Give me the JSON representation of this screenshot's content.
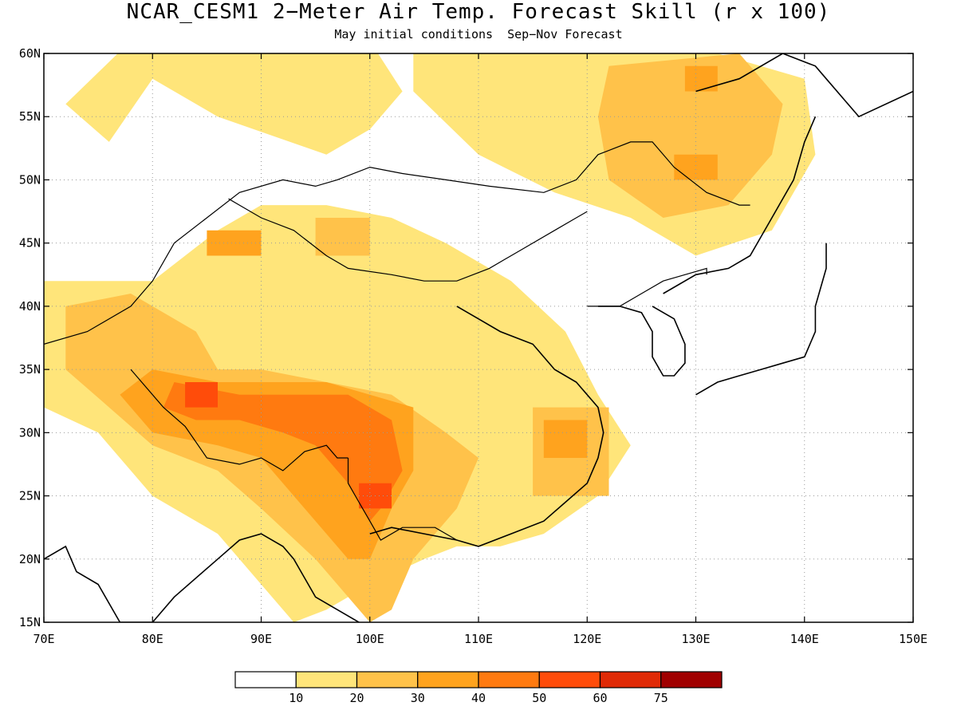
{
  "title": "NCAR_CESM1 2−Meter Air Temp. Forecast Skill (r x 100)",
  "subtitle": "May initial conditions  Sep−Nov Forecast",
  "map": {
    "lon_range": [
      70,
      150
    ],
    "lat_range": [
      15,
      60
    ],
    "x_ticks": [
      {
        "lon": 70,
        "label": "70E"
      },
      {
        "lon": 80,
        "label": "80E"
      },
      {
        "lon": 90,
        "label": "90E"
      },
      {
        "lon": 100,
        "label": "100E"
      },
      {
        "lon": 110,
        "label": "110E"
      },
      {
        "lon": 120,
        "label": "120E"
      },
      {
        "lon": 130,
        "label": "130E"
      },
      {
        "lon": 140,
        "label": "140E"
      },
      {
        "lon": 150,
        "label": "150E"
      }
    ],
    "y_ticks": [
      {
        "lat": 15,
        "label": "15N"
      },
      {
        "lat": 20,
        "label": "20N"
      },
      {
        "lat": 25,
        "label": "25N"
      },
      {
        "lat": 30,
        "label": "30N"
      },
      {
        "lat": 35,
        "label": "35N"
      },
      {
        "lat": 40,
        "label": "40N"
      },
      {
        "lat": 45,
        "label": "45N"
      },
      {
        "lat": 50,
        "label": "50N"
      },
      {
        "lat": 55,
        "label": "55N"
      },
      {
        "lat": 60,
        "label": "60N"
      }
    ],
    "grid": "dotted"
  },
  "colorbar": {
    "colors": [
      "#ffffff",
      "#ffe57a",
      "#ffc24a",
      "#ffa31e",
      "#ff7a10",
      "#ff4c0a",
      "#e02a06",
      "#a00000"
    ],
    "tick_labels": [
      "10",
      "20",
      "30",
      "40",
      "50",
      "60",
      "75"
    ]
  },
  "skill_regions": [
    {
      "level": 1,
      "lon": [
        76,
        100,
        103,
        100,
        96,
        86,
        80,
        76,
        72,
        78
      ],
      "lat": [
        61,
        61,
        57,
        54,
        52,
        55,
        58,
        53,
        56,
        61
      ]
    },
    {
      "level": 1,
      "lon": [
        104,
        128,
        140,
        141,
        137,
        130,
        124,
        117,
        110,
        104
      ],
      "lat": [
        61,
        61,
        58,
        52,
        46,
        44,
        47,
        49,
        52,
        57
      ]
    },
    {
      "level": 2,
      "lon": [
        122,
        134,
        138,
        137,
        133,
        127,
        122,
        121
      ],
      "lat": [
        59,
        60,
        56,
        52,
        48,
        47,
        50,
        55
      ]
    },
    {
      "level": 3,
      "lon": [
        129,
        132,
        132,
        129
      ],
      "lat": [
        57,
        57,
        59,
        59
      ]
    },
    {
      "level": 3,
      "lon": [
        128,
        132,
        132,
        128
      ],
      "lat": [
        50,
        50,
        52,
        52
      ]
    },
    {
      "level": 1,
      "lon": [
        70,
        80,
        86,
        90,
        96,
        102,
        107,
        113,
        118,
        121,
        124,
        121,
        116,
        112,
        108,
        105,
        100,
        96,
        93,
        90,
        86,
        80,
        75,
        70
      ],
      "lat": [
        42,
        42,
        46,
        48,
        48,
        47,
        45,
        42,
        38,
        33,
        29,
        25,
        22,
        21,
        21,
        20,
        18,
        16,
        15,
        18,
        22,
        25,
        30,
        32
      ]
    },
    {
      "level": 2,
      "lon": [
        72,
        78,
        84,
        86,
        90,
        96,
        102,
        107,
        110,
        108,
        104,
        102,
        100,
        98,
        95,
        90,
        86,
        80,
        76,
        72
      ],
      "lat": [
        40,
        41,
        38,
        35,
        35,
        34,
        33,
        30,
        28,
        24,
        20,
        16,
        15,
        17,
        20,
        24,
        27,
        29,
        32,
        35
      ]
    },
    {
      "level": 3,
      "lon": [
        80,
        86,
        92,
        96,
        100,
        104,
        104,
        102,
        100,
        98,
        94,
        90,
        86,
        80,
        77
      ],
      "lat": [
        35,
        34,
        34,
        34,
        33,
        32,
        27,
        24,
        20,
        20,
        24,
        28,
        29,
        30,
        33
      ]
    },
    {
      "level": 4,
      "lon": [
        82,
        88,
        94,
        98,
        102,
        103,
        101,
        100,
        98,
        95,
        92,
        88,
        84,
        81
      ],
      "lat": [
        34,
        33,
        33,
        33,
        31,
        27,
        24,
        23,
        26,
        29,
        30,
        31,
        31,
        32
      ]
    },
    {
      "level": 5,
      "lon": [
        83,
        86,
        86,
        83
      ],
      "lat": [
        32,
        32,
        34,
        34
      ]
    },
    {
      "level": 5,
      "lon": [
        99,
        102,
        102,
        99
      ],
      "lat": [
        24,
        24,
        26,
        26
      ]
    },
    {
      "level": 3,
      "lon": [
        85,
        90,
        90,
        85
      ],
      "lat": [
        44,
        44,
        46,
        46
      ]
    },
    {
      "level": 2,
      "lon": [
        95,
        100,
        100,
        95
      ],
      "lat": [
        44,
        44,
        47,
        47
      ]
    },
    {
      "level": 2,
      "lon": [
        115,
        122,
        122,
        115
      ],
      "lat": [
        25,
        25,
        32,
        32
      ]
    },
    {
      "level": 3,
      "lon": [
        116,
        120,
        120,
        116
      ],
      "lat": [
        28,
        28,
        31,
        31
      ]
    }
  ],
  "coastlines": [
    {
      "lon": [
        100,
        102,
        105,
        108,
        110,
        113,
        116,
        118,
        120,
        121,
        121.5,
        121,
        119,
        117,
        115,
        112,
        110,
        108
      ],
      "lat": [
        22,
        22.5,
        22,
        21.5,
        21,
        22,
        23,
        24.5,
        26,
        28,
        30,
        32,
        34,
        35,
        37,
        38,
        39,
        40
      ]
    },
    {
      "lon": [
        121,
        123,
        125,
        126,
        126,
        127,
        128,
        129,
        129,
        128,
        126
      ],
      "lat": [
        40,
        40,
        39.5,
        38,
        36,
        34.5,
        34.5,
        35.5,
        37,
        39,
        40
      ]
    },
    {
      "lon": [
        130,
        132,
        134,
        136,
        138,
        140,
        141,
        141,
        142,
        142
      ],
      "lat": [
        33,
        34,
        34.5,
        35,
        35.5,
        36,
        38,
        40,
        43,
        45
      ]
    },
    {
      "lon": [
        127,
        130,
        133,
        135,
        137,
        139,
        140,
        141
      ],
      "lat": [
        41,
        42.5,
        43,
        44,
        47,
        50,
        53,
        55
      ]
    },
    {
      "lon": [
        130,
        134,
        138,
        141,
        142,
        145,
        150
      ],
      "lat": [
        57,
        58,
        60,
        59,
        58,
        55,
        57
      ]
    },
    {
      "lon": [
        70,
        72,
        73,
        75,
        77,
        80,
        82,
        86,
        88,
        90,
        92,
        93,
        95,
        97,
        99,
        100
      ],
      "lat": [
        20,
        21,
        19,
        18,
        15,
        15,
        17,
        20,
        21.5,
        22,
        21,
        20,
        17,
        16,
        15,
        14
      ]
    }
  ],
  "borders": [
    {
      "lon": [
        70,
        74,
        78,
        80,
        82,
        85,
        88,
        92,
        95,
        97,
        100,
        103,
        107,
        111,
        116,
        119,
        121,
        124,
        126,
        128,
        131,
        134,
        135
      ],
      "lat": [
        37,
        38,
        40,
        42,
        45,
        47,
        49,
        50,
        49.5,
        50,
        51,
        50.5,
        50,
        49.5,
        49,
        50,
        52,
        53,
        53,
        51,
        49,
        48,
        48
      ]
    },
    {
      "lon": [
        87,
        90,
        93,
        96,
        98,
        102,
        105,
        108,
        111,
        114,
        117,
        119,
        120
      ],
      "lat": [
        48.5,
        47,
        46,
        44,
        43,
        42.5,
        42,
        42,
        43,
        44.5,
        46,
        47,
        47.5
      ]
    },
    {
      "lon": [
        78,
        81,
        83,
        85,
        88,
        90,
        92,
        94,
        96,
        97,
        98
      ],
      "lat": [
        35,
        32,
        30.5,
        28,
        27.5,
        28,
        27,
        28.5,
        29,
        28,
        28
      ]
    },
    {
      "lon": [
        98,
        98,
        99,
        100,
        101,
        103,
        106,
        108
      ],
      "lat": [
        28,
        26,
        24.5,
        23,
        21.5,
        22.5,
        22.5,
        21.5
      ]
    },
    {
      "lon": [
        120,
        123,
        125,
        127,
        129,
        131,
        131
      ],
      "lat": [
        40,
        40,
        41,
        42,
        42.5,
        43,
        42.5
      ]
    }
  ]
}
